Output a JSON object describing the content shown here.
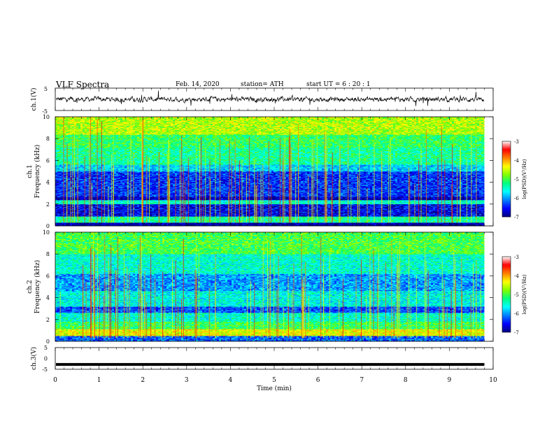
{
  "header": {
    "title": "VLF  Spectra",
    "date": "Feb. 14, 2020",
    "station": "station= ATH",
    "start": "start  UT  =   6  : 20 : 1"
  },
  "chart_data": [
    {
      "type": "line",
      "panel": "ch1-waveform",
      "ylabel": "ch.1(V)",
      "ylim": [
        -5,
        5
      ],
      "yticks": [
        "5",
        "-5"
      ],
      "xlim": [
        0,
        10
      ],
      "series": [
        {
          "values_summary": "noisy trace around 0 V, amplitude ~ ±1 V, ends near 9.8 min"
        }
      ]
    },
    {
      "type": "heatmap",
      "panel": "ch1-spectrogram",
      "ylabel": "ch.1\nFrequency  (kHz)",
      "ylim": [
        0,
        10
      ],
      "yticks": [
        "0",
        "2",
        "4",
        "6",
        "8",
        "10"
      ],
      "xlim": [
        0,
        10
      ],
      "data_end_min": 9.8,
      "colorbar": {
        "label": "log(PSD)(V²/Hz)",
        "range": [
          -7,
          -3
        ],
        "ticks": [
          "-3",
          "-4",
          "-5",
          "-6",
          "-7"
        ]
      },
      "bands": [
        {
          "from_khz": 0,
          "to_khz": 0.3,
          "level": -6.9
        },
        {
          "from_khz": 0.3,
          "to_khz": 0.9,
          "level": -5.3
        },
        {
          "from_khz": 0.9,
          "to_khz": 2.0,
          "level": -6.6
        },
        {
          "from_khz": 2.0,
          "to_khz": 2.4,
          "level": -5.5
        },
        {
          "from_khz": 2.4,
          "to_khz": 2.7,
          "level": -6.8
        },
        {
          "from_khz": 2.7,
          "to_khz": 5.0,
          "level": -6.4
        },
        {
          "from_khz": 5.0,
          "to_khz": 5.6,
          "level": -5.8
        },
        {
          "from_khz": 5.6,
          "to_khz": 7.2,
          "level": -5.3
        },
        {
          "from_khz": 7.2,
          "to_khz": 8.4,
          "level": -5.1
        },
        {
          "from_khz": 8.4,
          "to_khz": 10,
          "level": -4.6
        }
      ]
    },
    {
      "type": "heatmap",
      "panel": "ch2-spectrogram",
      "ylabel": "ch.2\nFrequency  (kHz)",
      "ylim": [
        0,
        10
      ],
      "yticks": [
        "0",
        "2",
        "4",
        "6",
        "8",
        "10"
      ],
      "xlim": [
        0,
        10
      ],
      "data_end_min": 9.8,
      "colorbar": {
        "label": "log(PSD)(V²/Hz)",
        "range": [
          -7,
          -3
        ],
        "ticks": [
          "-3",
          "-4",
          "-5",
          "-6",
          "-7"
        ]
      },
      "bands": [
        {
          "from_khz": 0,
          "to_khz": 0.5,
          "level": -6.2
        },
        {
          "from_khz": 0.5,
          "to_khz": 1.1,
          "level": -4.4
        },
        {
          "from_khz": 1.1,
          "to_khz": 1.8,
          "level": -5.1
        },
        {
          "from_khz": 1.8,
          "to_khz": 2.6,
          "level": -5.5
        },
        {
          "from_khz": 2.6,
          "to_khz": 3.2,
          "level": -6.3
        },
        {
          "from_khz": 3.2,
          "to_khz": 4.6,
          "level": -5.6
        },
        {
          "from_khz": 4.6,
          "to_khz": 6.2,
          "level": -6.0
        },
        {
          "from_khz": 6.2,
          "to_khz": 8.0,
          "level": -5.5
        },
        {
          "from_khz": 8.0,
          "to_khz": 10,
          "level": -5.0
        }
      ]
    },
    {
      "type": "line",
      "panel": "ch3-waveform",
      "ylabel": "ch.3(V)",
      "ylim": [
        -5,
        5
      ],
      "yticks": [
        "5",
        "0",
        "-5"
      ],
      "xlim": [
        0,
        10
      ],
      "xlabel": "Time  (min)",
      "xticks": [
        "0",
        "1",
        "2",
        "3",
        "4",
        "5",
        "6",
        "7",
        "8",
        "9",
        "10"
      ],
      "series": [
        {
          "values_summary": "thick flat trace at about -3 V, ends near 9.8 min"
        }
      ]
    }
  ],
  "colors": {
    "colormap": [
      "#000080",
      "#0000ff",
      "#0080ff",
      "#00ffff",
      "#00ff80",
      "#80ff00",
      "#ffff00",
      "#ff8000",
      "#ff0000",
      "#ffffff"
    ],
    "trace": "#000000"
  }
}
